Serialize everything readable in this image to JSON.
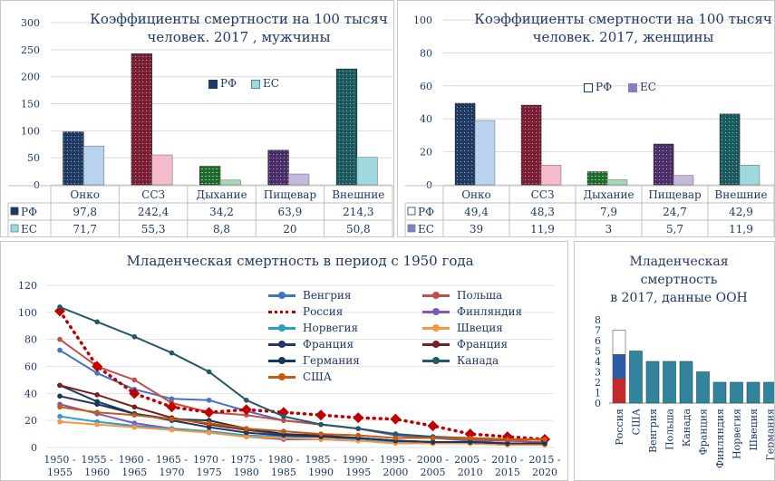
{
  "chart_data": [
    {
      "type": "bar",
      "title": "Коэффициенты смертности на 100 тысяч человек. 2017 , мужчины",
      "title_lines": [
        "Коэффициенты смертности на 100 тысяч",
        "человек. 2017 , мужчины"
      ],
      "categories": [
        "Онко",
        "ССЗ",
        "Дыхание",
        "Пищевар",
        "Внешние"
      ],
      "series": [
        {
          "name": "РФ",
          "values": [
            97.8,
            242.4,
            34.2,
            63.9,
            214.3
          ],
          "labels": [
            "97,8",
            "242,4",
            "34,2",
            "63,9",
            "214,3"
          ]
        },
        {
          "name": "ЕС",
          "values": [
            71.7,
            55.3,
            8.8,
            20,
            50.8
          ],
          "labels": [
            "71,7",
            "55,3",
            "8,8",
            "20",
            "50,8"
          ]
        }
      ],
      "yticks": [
        "0",
        "50",
        "100",
        "150",
        "200",
        "250",
        "300"
      ],
      "ylim": [
        0,
        300
      ],
      "legend": "center",
      "bar_colors": {
        "rf": [
          "#1f3a63",
          "#7a1f35",
          "#1c6b2a",
          "#4a2f6b",
          "#1b5a5e"
        ],
        "eu": [
          "#b9d3ee",
          "#f4bccb",
          "#a7d7b5",
          "#c6b8dc",
          "#9fd9dd"
        ]
      }
    },
    {
      "type": "bar",
      "title": "Коэффициенты смертности на 100 тысяч человек. 2017, женщины",
      "title_lines": [
        "Коэффициенты смертности на 100 тысяч",
        "человек. 2017, женщины"
      ],
      "categories": [
        "Онко",
        "ССЗ",
        "Дыхание",
        "Пищевар",
        "Внешние"
      ],
      "series": [
        {
          "name": "РФ",
          "values": [
            49.4,
            48.3,
            7.9,
            24.7,
            42.9
          ],
          "labels": [
            "49,4",
            "48,3",
            "7,9",
            "24,7",
            "42,9"
          ]
        },
        {
          "name": "ЕС",
          "values": [
            39,
            11.9,
            3,
            5.7,
            11.9
          ],
          "labels": [
            "39",
            "11,9",
            "3",
            "5,7",
            "11,9"
          ]
        }
      ],
      "yticks": [
        "0",
        "20",
        "40",
        "60",
        "80",
        "100"
      ],
      "ylim": [
        0,
        100
      ],
      "legend": "center"
    },
    {
      "type": "line",
      "title": "Младенческая смертность в период с 1950 года",
      "x": [
        "1950 - 1955",
        "1955 - 1960",
        "1960 - 1965",
        "1965 - 1970",
        "1970 - 1975",
        "1975 - 1980",
        "1980 - 1985",
        "1985 - 1990",
        "1990 - 1995",
        "1995 - 2000",
        "2000 - 2005",
        "2005 - 2010",
        "2010 - 2015",
        "2015 - 2020"
      ],
      "yticks": [
        "0",
        "20",
        "40",
        "60",
        "80",
        "100",
        "120"
      ],
      "ylim": [
        0,
        120
      ],
      "legend": "top-right",
      "series": [
        {
          "name": "Венгрия",
          "color": "#4472c4",
          "dash": false,
          "values": [
            72,
            55,
            43,
            36,
            35,
            27,
            20,
            17,
            14,
            9,
            7,
            5,
            5,
            4
          ]
        },
        {
          "name": "Польша",
          "color": "#c0504d",
          "dash": false,
          "values": [
            80,
            60,
            50,
            33,
            26,
            24,
            20,
            17,
            14,
            10,
            7,
            6,
            5,
            4
          ]
        },
        {
          "name": "Россия",
          "color": "#c00000",
          "dash": true,
          "values": [
            101,
            60,
            40,
            30,
            26,
            28,
            26,
            24,
            22,
            21,
            16,
            10,
            8,
            6
          ]
        },
        {
          "name": "Финляндия",
          "color": "#7a5cb8",
          "dash": false,
          "values": [
            32,
            25,
            18,
            14,
            11,
            8,
            6,
            6,
            5,
            4,
            3,
            3,
            2,
            2
          ]
        },
        {
          "name": "Норвегия",
          "color": "#2e9ec9",
          "dash": false,
          "values": [
            23,
            19,
            16,
            14,
            12,
            9,
            8,
            8,
            6,
            4,
            3,
            3,
            2,
            2
          ]
        },
        {
          "name": "Швеция",
          "color": "#f79646",
          "dash": false,
          "values": [
            19,
            17,
            15,
            13,
            11,
            8,
            7,
            6,
            5,
            3,
            3,
            3,
            2,
            2
          ]
        },
        {
          "name": "Франция",
          "color": "#1f3864",
          "dash": false,
          "values": [
            46,
            34,
            25,
            20,
            15,
            11,
            9,
            8,
            7,
            5,
            4,
            4,
            3,
            3
          ]
        },
        {
          "name": "Франция",
          "color": "#7a1f1f",
          "dash": false,
          "values": [
            46,
            39,
            30,
            22,
            17,
            13,
            10,
            9,
            7,
            5,
            4,
            4,
            3,
            3
          ]
        },
        {
          "name": "Германия",
          "color": "#17375e",
          "dash": false,
          "values": [
            38,
            32,
            25,
            21,
            20,
            14,
            10,
            8,
            7,
            5,
            4,
            4,
            3,
            3
          ]
        },
        {
          "name": "Канада",
          "color": "#215967",
          "dash": false,
          "values": [
            104,
            93,
            82,
            70,
            56,
            35,
            23,
            17,
            14,
            10,
            8,
            7,
            6,
            6
          ]
        },
        {
          "name": "США",
          "color": "#c55a11",
          "dash": false,
          "values": [
            30,
            26,
            24,
            21,
            18,
            14,
            12,
            10,
            9,
            7,
            7,
            7,
            6,
            6
          ]
        }
      ]
    },
    {
      "type": "bar",
      "title": "Младенческая смертность в 2017, данные ООН",
      "title_lines": [
        "Младенческая",
        "смертность",
        "в 2017, данные ООН"
      ],
      "categories": [
        "Россия",
        "США",
        "Венгрия",
        "Польша",
        "Канада",
        "Франция",
        "Финляндия",
        "Норвегия",
        "Швеция",
        "Германия"
      ],
      "values": [
        7,
        5,
        4,
        4,
        4,
        3,
        2,
        2,
        2,
        2
      ],
      "yticks": [
        "0",
        "1",
        "2",
        "3",
        "4",
        "5",
        "6",
        "7",
        "8"
      ],
      "ylim": [
        0,
        8
      ],
      "colors": {
        "bar": "#31849b",
        "bar_edge": "#1d4e5a",
        "flag_white": "#ffffff",
        "flag_blue": "#2e5ba6",
        "flag_red": "#c62828"
      }
    }
  ],
  "table_row_labels": {
    "rf": "РФ",
    "eu": "ЕС"
  }
}
